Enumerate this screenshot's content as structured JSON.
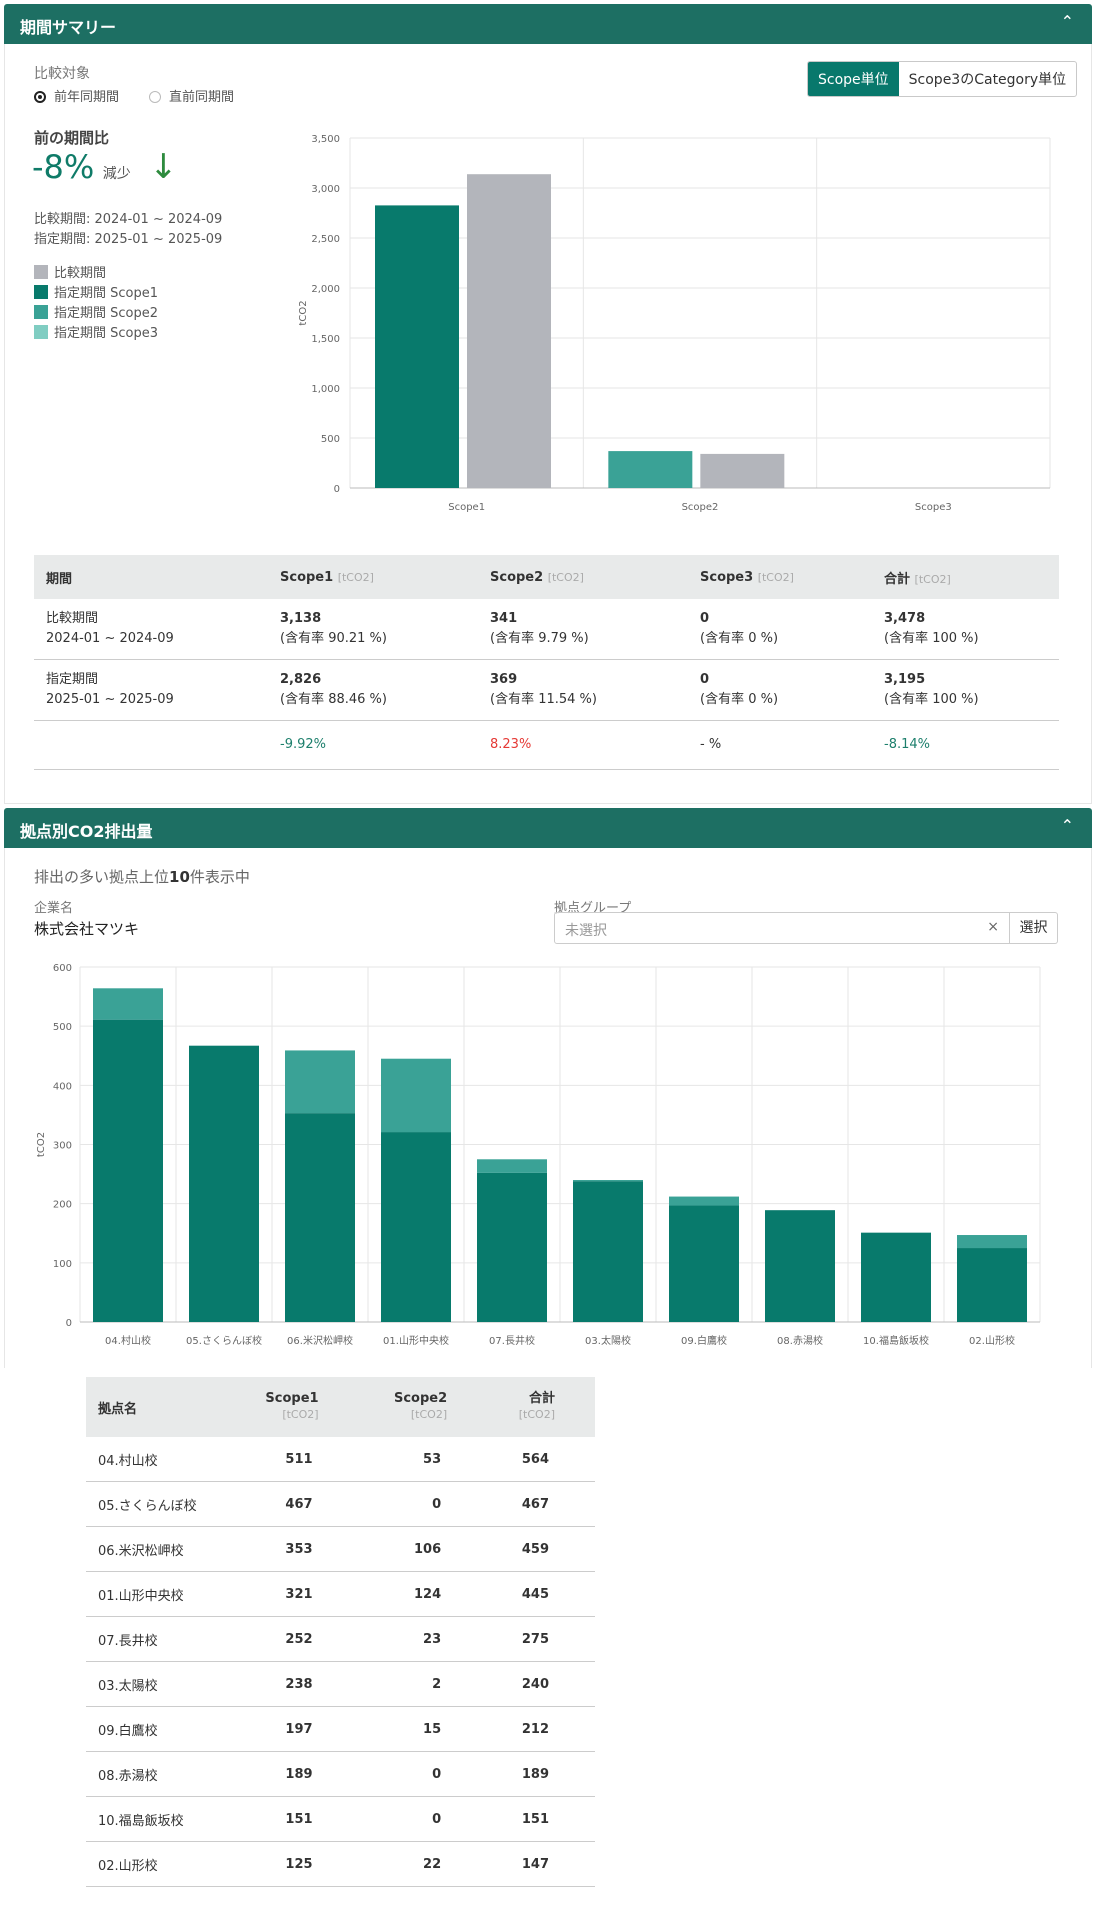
{
  "summary": {
    "title": "期間サマリー",
    "compare_label": "比較対象",
    "radio_prev_year": "前年同期間",
    "radio_prev_period": "直前同期間",
    "toggle_scope": "Scope単位",
    "toggle_category": "Scope3のCategory単位",
    "ratio_title": "前の期間比",
    "ratio_value": "-8%",
    "ratio_word": "減少",
    "compare_period": "比較期間: 2024-01 ~ 2024-09",
    "target_period": "指定期間: 2025-01 ~ 2025-09",
    "legend": [
      {
        "label": "比較期間",
        "color": "#b3b5bb"
      },
      {
        "label": "指定期間 Scope1",
        "color": "#087a6c"
      },
      {
        "label": "指定期間 Scope2",
        "color": "#3aa296"
      },
      {
        "label": "指定期間 Scope3",
        "color": "#80cdc2"
      }
    ],
    "table": {
      "headers": [
        "期間",
        "Scope1",
        "Scope2",
        "Scope3",
        "合計"
      ],
      "unit": "[tCO2]",
      "rows": [
        {
          "period": "比較期間",
          "range": "2024-01 ~ 2024-09",
          "s1": "3,138",
          "s1r": "(含有率 90.21 %)",
          "s2": "341",
          "s2r": "(含有率 9.79 %)",
          "s3": "0",
          "s3r": "(含有率 0 %)",
          "tot": "3,478",
          "totr": "(含有率 100 %)"
        },
        {
          "period": "指定期間",
          "range": "2025-01 ~ 2025-09",
          "s1": "2,826",
          "s1r": "(含有率 88.46 %)",
          "s2": "369",
          "s2r": "(含有率 11.54 %)",
          "s3": "0",
          "s3r": "(含有率 0 %)",
          "tot": "3,195",
          "totr": "(含有率 100 %)"
        }
      ],
      "diff": {
        "s1": "-9.92%",
        "s2": "8.23%",
        "s3": "- %",
        "tot": "-8.14%"
      }
    }
  },
  "sites": {
    "title": "拠点別CO2排出量",
    "top_note_prefix": "排出の多い拠点上位",
    "top_note_count": "10",
    "top_note_suffix": "件表示中",
    "company_label": "企業名",
    "company_name": "株式会社マツキ",
    "group_label": "拠点グループ",
    "group_placeholder": "未選択",
    "clear": "×",
    "select_button": "選択",
    "table_headers": {
      "name": "拠点名",
      "s1": "Scope1",
      "s2": "Scope2",
      "tot": "合計",
      "unit": "[tCO2]"
    },
    "rows": [
      {
        "name": "04.村山校",
        "s1": "511",
        "s2": "53",
        "tot": "564"
      },
      {
        "name": "05.さくらんぼ校",
        "s1": "467",
        "s2": "0",
        "tot": "467"
      },
      {
        "name": "06.米沢松岬校",
        "s1": "353",
        "s2": "106",
        "tot": "459"
      },
      {
        "name": "01.山形中央校",
        "s1": "321",
        "s2": "124",
        "tot": "445"
      },
      {
        "name": "07.長井校",
        "s1": "252",
        "s2": "23",
        "tot": "275"
      },
      {
        "name": "03.太陽校",
        "s1": "238",
        "s2": "2",
        "tot": "240"
      },
      {
        "name": "09.白鷹校",
        "s1": "197",
        "s2": "15",
        "tot": "212"
      },
      {
        "name": "08.赤湯校",
        "s1": "189",
        "s2": "0",
        "tot": "189"
      },
      {
        "name": "10.福島飯坂校",
        "s1": "151",
        "s2": "0",
        "tot": "151"
      },
      {
        "name": "02.山形校",
        "s1": "125",
        "s2": "22",
        "tot": "147"
      }
    ]
  },
  "chart_data": [
    {
      "type": "bar",
      "ylabel": "tCO2",
      "ylim": [
        0,
        3500
      ],
      "yticks": [
        "0",
        "500",
        "1,000",
        "1,500",
        "2,000",
        "2,500",
        "3,000",
        "3,500"
      ],
      "categories": [
        "Scope1",
        "Scope2",
        "Scope3"
      ],
      "series": [
        {
          "name": "指定期間",
          "values": [
            2826,
            369,
            0
          ],
          "colors": [
            "#087a6c",
            "#3aa296",
            "#80cdc2"
          ]
        },
        {
          "name": "比較期間",
          "values": [
            3138,
            341,
            0
          ],
          "color": "#b3b5bb"
        }
      ],
      "grid": true
    },
    {
      "type": "bar",
      "stacked": true,
      "ylabel": "tCO2",
      "ylim": [
        0,
        600
      ],
      "yticks": [
        "0",
        "100",
        "200",
        "300",
        "400",
        "500",
        "600"
      ],
      "categories": [
        "04.村山校",
        "05.さくらんぼ校",
        "06.米沢松岬校",
        "01.山形中央校",
        "07.長井校",
        "03.太陽校",
        "09.白鷹校",
        "08.赤湯校",
        "10.福島飯坂校",
        "02.山形校"
      ],
      "series": [
        {
          "name": "Scope1",
          "values": [
            511,
            467,
            353,
            321,
            252,
            238,
            197,
            189,
            151,
            125
          ],
          "color": "#087a6c"
        },
        {
          "name": "Scope2",
          "values": [
            53,
            0,
            106,
            124,
            23,
            2,
            15,
            0,
            0,
            22
          ],
          "color": "#3aa296"
        }
      ],
      "grid": true
    }
  ]
}
